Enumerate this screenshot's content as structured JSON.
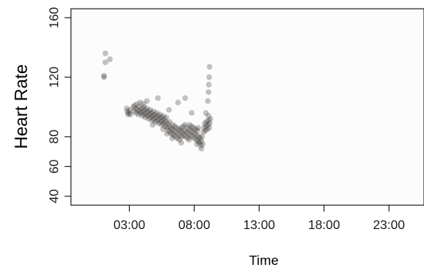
{
  "chart_data": {
    "type": "scatter",
    "title": "",
    "xlabel": "Time",
    "ylabel": "Heart Rate",
    "x_unit": "hours of day",
    "xlim": [
      -1.5,
      25.7
    ],
    "ylim": [
      34,
      166
    ],
    "x_ticks": [
      {
        "value": 3,
        "label": "03:00"
      },
      {
        "value": 8,
        "label": "08:00"
      },
      {
        "value": 13,
        "label": "13:00"
      },
      {
        "value": 18,
        "label": "18:00"
      },
      {
        "value": 23,
        "label": "23:00"
      }
    ],
    "y_ticks": [
      {
        "value": 40,
        "label": "40"
      },
      {
        "value": 60,
        "label": "60"
      },
      {
        "value": 80,
        "label": "80"
      },
      {
        "value": 120,
        "label": "120"
      },
      {
        "value": 160,
        "label": "160"
      }
    ],
    "grid": false,
    "legend": "none",
    "point_color": "#2a2723",
    "point_opacity": 0.28,
    "background_color": "#fdfcfc",
    "series": [
      {
        "values": [
          [
            1.15,
            136
          ],
          [
            1.15,
            130
          ],
          [
            1.5,
            132
          ],
          [
            1.05,
            121
          ],
          [
            1.05,
            120
          ],
          [
            2.8,
            99
          ],
          [
            2.85,
            97
          ],
          [
            2.9,
            95
          ],
          [
            2.95,
            96
          ],
          [
            3.05,
            98
          ],
          [
            3.1,
            95
          ],
          [
            3.3,
            100
          ],
          [
            3.35,
            97
          ],
          [
            3.4,
            101
          ],
          [
            3.5,
            99
          ],
          [
            3.55,
            96
          ],
          [
            3.6,
            102
          ],
          [
            3.65,
            98
          ],
          [
            3.7,
            95
          ],
          [
            3.75,
            100
          ],
          [
            3.8,
            97
          ],
          [
            3.85,
            103
          ],
          [
            3.9,
            96
          ],
          [
            3.95,
            99
          ],
          [
            4.0,
            94
          ],
          [
            4.05,
            97
          ],
          [
            4.1,
            100
          ],
          [
            4.15,
            95
          ],
          [
            4.2,
            98
          ],
          [
            4.25,
            93
          ],
          [
            4.3,
            96
          ],
          [
            4.35,
            99
          ],
          [
            4.4,
            94
          ],
          [
            4.45,
            97
          ],
          [
            4.5,
            92
          ],
          [
            4.55,
            95
          ],
          [
            4.6,
            98
          ],
          [
            4.65,
            93
          ],
          [
            4.7,
            96
          ],
          [
            4.75,
            91
          ],
          [
            4.8,
            94
          ],
          [
            4.85,
            97
          ],
          [
            4.9,
            92
          ],
          [
            4.95,
            95
          ],
          [
            5.0,
            90
          ],
          [
            5.05,
            93
          ],
          [
            5.1,
            96
          ],
          [
            5.15,
            91
          ],
          [
            5.2,
            94
          ],
          [
            5.25,
            89
          ],
          [
            5.3,
            92
          ],
          [
            5.35,
            95
          ],
          [
            5.4,
            90
          ],
          [
            5.45,
            93
          ],
          [
            5.5,
            88
          ],
          [
            5.55,
            91
          ],
          [
            5.6,
            94
          ],
          [
            5.65,
            89
          ],
          [
            5.7,
            92
          ],
          [
            5.75,
            87
          ],
          [
            5.8,
            90
          ],
          [
            5.85,
            93
          ],
          [
            5.9,
            86
          ],
          [
            5.95,
            89
          ],
          [
            6.0,
            84
          ],
          [
            6.05,
            87
          ],
          [
            6.1,
            90
          ],
          [
            6.15,
            83
          ],
          [
            6.2,
            86
          ],
          [
            6.25,
            82
          ],
          [
            6.3,
            85
          ],
          [
            6.35,
            88
          ],
          [
            6.4,
            81
          ],
          [
            6.45,
            84
          ],
          [
            6.5,
            87
          ],
          [
            6.55,
            80
          ],
          [
            6.6,
            83
          ],
          [
            6.65,
            86
          ],
          [
            6.7,
            79
          ],
          [
            6.75,
            82
          ],
          [
            6.8,
            85
          ],
          [
            6.85,
            78
          ],
          [
            6.9,
            81
          ],
          [
            6.95,
            84
          ],
          [
            7.0,
            86
          ],
          [
            7.05,
            80
          ],
          [
            7.1,
            83
          ],
          [
            7.15,
            87
          ],
          [
            7.2,
            81
          ],
          [
            7.25,
            84
          ],
          [
            7.3,
            88
          ],
          [
            7.35,
            80
          ],
          [
            7.4,
            83
          ],
          [
            7.45,
            86
          ],
          [
            7.5,
            79
          ],
          [
            7.55,
            82
          ],
          [
            7.6,
            85
          ],
          [
            7.65,
            88
          ],
          [
            7.7,
            81
          ],
          [
            7.75,
            84
          ],
          [
            7.8,
            87
          ],
          [
            7.85,
            80
          ],
          [
            7.9,
            83
          ],
          [
            7.95,
            86
          ],
          [
            8.0,
            79
          ],
          [
            8.05,
            82
          ],
          [
            8.1,
            85
          ],
          [
            8.15,
            78
          ],
          [
            8.2,
            81
          ],
          [
            8.25,
            84
          ],
          [
            8.3,
            77
          ],
          [
            8.35,
            80
          ],
          [
            8.4,
            76
          ],
          [
            8.45,
            79
          ],
          [
            8.5,
            74
          ],
          [
            8.55,
            77
          ],
          [
            8.6,
            80
          ],
          [
            8.65,
            75
          ],
          [
            8.7,
            83
          ],
          [
            8.75,
            86
          ],
          [
            8.8,
            89
          ],
          [
            8.85,
            84
          ],
          [
            8.9,
            87
          ],
          [
            8.95,
            90
          ],
          [
            9.0,
            85
          ],
          [
            9.05,
            88
          ],
          [
            9.1,
            91
          ],
          [
            9.15,
            86
          ],
          [
            9.2,
            89
          ],
          [
            9.25,
            92
          ],
          [
            4.35,
            104
          ],
          [
            4.1,
            102
          ],
          [
            5.2,
            106
          ],
          [
            6.05,
            98
          ],
          [
            6.75,
            103
          ],
          [
            7.3,
            106
          ],
          [
            7.8,
            96
          ],
          [
            8.9,
            96
          ],
          [
            5.6,
            85
          ],
          [
            6.3,
            79
          ],
          [
            7.0,
            76
          ],
          [
            7.6,
            78
          ],
          [
            8.2,
            75
          ],
          [
            8.55,
            72
          ],
          [
            4.8,
            88
          ],
          [
            5.9,
            82
          ],
          [
            8.3,
            86
          ],
          [
            9.1,
            94
          ],
          [
            9.1,
            110
          ],
          [
            9.12,
            115
          ],
          [
            9.15,
            120
          ],
          [
            9.18,
            127
          ],
          [
            9.05,
            104
          ]
        ]
      }
    ]
  }
}
